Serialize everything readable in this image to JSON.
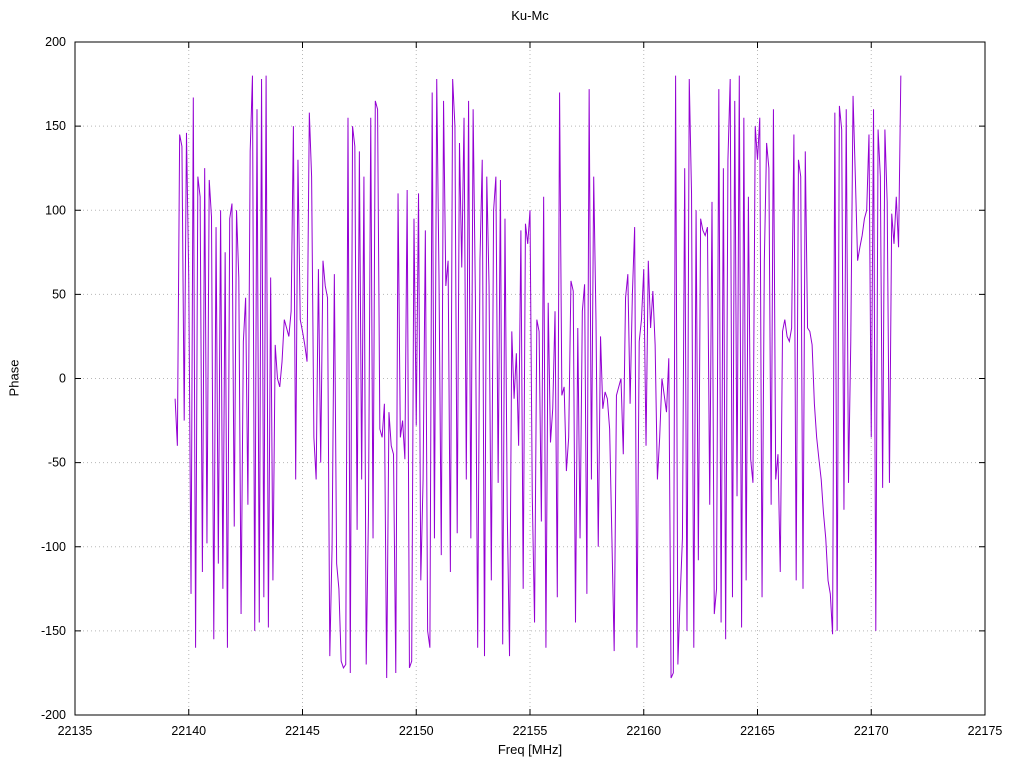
{
  "chart_data": {
    "type": "line",
    "title": "Ku-Mc",
    "xlabel": "Freq [MHz]",
    "ylabel": "Phase",
    "xlim": [
      22135,
      22175
    ],
    "ylim": [
      -200,
      200
    ],
    "x_ticks": [
      22135,
      22140,
      22145,
      22150,
      22155,
      22160,
      22165,
      22170,
      22175
    ],
    "y_ticks": [
      -200,
      -150,
      -100,
      -50,
      0,
      50,
      100,
      150,
      200
    ],
    "grid": true,
    "legend": "none",
    "line_color": "#9400d3",
    "grid_color": "#b8b8b8",
    "x_start": 22139.4,
    "x_step": 0.1,
    "phase_values": [
      -12,
      -40,
      145,
      138,
      -25,
      146,
      60,
      -128,
      167,
      -160,
      120,
      108,
      -115,
      125,
      -98,
      118,
      96,
      -155,
      90,
      -110,
      100,
      -125,
      75,
      -160,
      95,
      104,
      -88,
      100,
      60,
      -140,
      22,
      48,
      -75,
      135,
      180,
      -150,
      160,
      -145,
      178,
      -130,
      180,
      -148,
      60,
      -120,
      20,
      0,
      -5,
      10,
      35,
      30,
      25,
      40,
      150,
      -60,
      130,
      35,
      28,
      20,
      10,
      158,
      120,
      -35,
      -60,
      65,
      -50,
      70,
      55,
      48,
      -165,
      -100,
      62,
      -110,
      -125,
      -168,
      -172,
      -170,
      155,
      -175,
      150,
      138,
      -90,
      135,
      -60,
      120,
      -170,
      -80,
      155,
      -95,
      165,
      160,
      -30,
      -35,
      -15,
      -178,
      -20,
      -40,
      -45,
      -175,
      110,
      -35,
      -25,
      -48,
      112,
      -172,
      -168,
      95,
      -28,
      110,
      -120,
      -60,
      88,
      -150,
      -160,
      170,
      -95,
      178,
      60,
      -105,
      165,
      55,
      70,
      -115,
      178,
      150,
      -92,
      140,
      66,
      155,
      -60,
      165,
      -95,
      160,
      48,
      -160,
      70,
      130,
      -165,
      120,
      55,
      -120,
      100,
      120,
      -62,
      118,
      -158,
      95,
      -80,
      -165,
      28,
      -12,
      15,
      -40,
      88,
      -125,
      92,
      80,
      100,
      -70,
      -145,
      35,
      28,
      -85,
      108,
      -160,
      45,
      -38,
      -18,
      40,
      -130,
      170,
      -10,
      -5,
      -55,
      -35,
      58,
      52,
      -145,
      30,
      -95,
      40,
      56,
      -128,
      172,
      -60,
      120,
      35,
      -100,
      25,
      -18,
      -8,
      -12,
      -30,
      -95,
      -162,
      -10,
      -5,
      0,
      -45,
      48,
      62,
      -15,
      50,
      90,
      -160,
      22,
      35,
      65,
      -40,
      70,
      30,
      52,
      20,
      -60,
      -35,
      0,
      -10,
      -20,
      12,
      -178,
      -175,
      180,
      -170,
      -130,
      -95,
      125,
      -150,
      178,
      110,
      -160,
      100,
      -108,
      95,
      88,
      85,
      90,
      -75,
      105,
      -140,
      -125,
      172,
      -145,
      125,
      -155,
      130,
      178,
      -130,
      165,
      -70,
      180,
      -148,
      155,
      -120,
      108,
      -48,
      -62,
      150,
      130,
      155,
      -130,
      70,
      140,
      125,
      -75,
      160,
      -60,
      -45,
      -115,
      28,
      35,
      25,
      22,
      30,
      145,
      -120,
      130,
      120,
      -125,
      135,
      30,
      28,
      20,
      -15,
      -35,
      -48,
      -60,
      -80,
      -95,
      -120,
      -128,
      -152,
      158,
      -150,
      162,
      148,
      -78,
      160,
      -62,
      22,
      168,
      120,
      70,
      78,
      85,
      95,
      100,
      145,
      -35,
      160,
      -150,
      148,
      120,
      -65,
      148,
      105,
      -62,
      98,
      80,
      108,
      78,
      180
    ]
  }
}
